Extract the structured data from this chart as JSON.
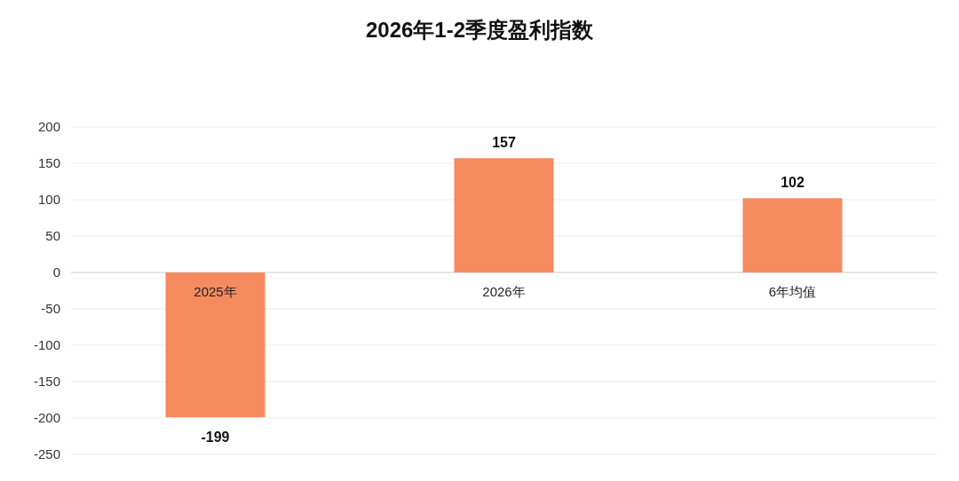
{
  "chart_data": {
    "type": "bar",
    "title": "2026年1-2季度盈利指数",
    "categories": [
      "2025年",
      "2026年",
      "6年均值"
    ],
    "values": [
      -199,
      157,
      102
    ],
    "color": "#f68a5f",
    "ylim": [
      -250,
      200
    ],
    "yticks": [
      -250,
      -200,
      -150,
      -100,
      -50,
      0,
      50,
      100,
      150,
      200
    ],
    "grid": "y",
    "data_labels": true
  }
}
